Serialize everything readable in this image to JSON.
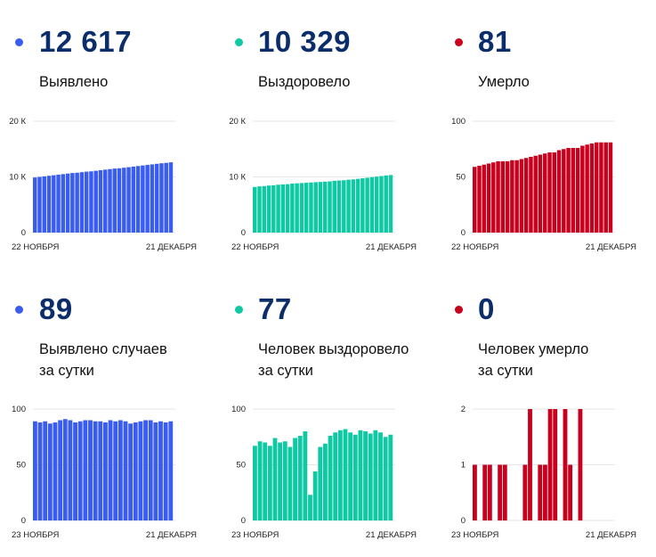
{
  "colors": {
    "blue": "#3a5df0",
    "teal": "#0ec9a4",
    "red": "#c8001e",
    "number": "#0b2e6b"
  },
  "panels": [
    {
      "value": "12 617",
      "label_lines": [
        "Выявлено"
      ],
      "color": "#3a5df0",
      "chart_data": {
        "type": "bar",
        "x_start_label": "22 НОЯБРЯ",
        "x_end_label": "21 ДЕКАБРЯ",
        "y_ticks": [
          "0",
          "10 К",
          "20 К"
        ],
        "ylim": [
          0,
          20000
        ],
        "values": [
          9900,
          10000,
          10100,
          10200,
          10300,
          10400,
          10500,
          10600,
          10700,
          10750,
          10850,
          10950,
          11000,
          11100,
          11200,
          11300,
          11400,
          11500,
          11550,
          11650,
          11750,
          11850,
          11950,
          12050,
          12150,
          12250,
          12350,
          12450,
          12520,
          12617
        ]
      }
    },
    {
      "value": "10 329",
      "label_lines": [
        "Выздоровело"
      ],
      "color": "#0ec9a4",
      "chart_data": {
        "type": "bar",
        "x_start_label": "22 НОЯБРЯ",
        "x_end_label": "21 ДЕКАБРЯ",
        "y_ticks": [
          "0",
          "10 К",
          "20 К"
        ],
        "ylim": [
          0,
          20000
        ],
        "values": [
          8200,
          8300,
          8350,
          8450,
          8500,
          8600,
          8650,
          8700,
          8800,
          8850,
          8900,
          8950,
          9000,
          9050,
          9100,
          9150,
          9200,
          9300,
          9350,
          9400,
          9500,
          9550,
          9650,
          9750,
          9850,
          9950,
          10050,
          10150,
          10250,
          10329
        ]
      }
    },
    {
      "value": "81",
      "label_lines": [
        "Умерло"
      ],
      "color": "#c8001e",
      "chart_data": {
        "type": "bar",
        "x_start_label": "22 НОЯБРЯ",
        "x_end_label": "21 ДЕКАБРЯ",
        "y_ticks": [
          "0",
          "50",
          "100"
        ],
        "ylim": [
          0,
          100
        ],
        "values": [
          59,
          60,
          61,
          62,
          63,
          64,
          64,
          64,
          65,
          65,
          66,
          67,
          68,
          69,
          70,
          71,
          72,
          72,
          74,
          75,
          76,
          76,
          76,
          78,
          79,
          80,
          81,
          81,
          81,
          81
        ]
      }
    },
    {
      "value": "89",
      "label_lines": [
        "Выявлено случаев",
        "за сутки"
      ],
      "color": "#3a5df0",
      "chart_data": {
        "type": "bar",
        "x_start_label": "23 НОЯБРЯ",
        "x_end_label": "21 ДЕКАБРЯ",
        "y_ticks": [
          "0",
          "50",
          "100"
        ],
        "ylim": [
          0,
          100
        ],
        "values": [
          89,
          88,
          89,
          87,
          88,
          90,
          91,
          90,
          88,
          89,
          90,
          90,
          89,
          89,
          88,
          90,
          89,
          90,
          89,
          87,
          88,
          89,
          90,
          90,
          88,
          89,
          88,
          89
        ]
      }
    },
    {
      "value": "77",
      "label_lines": [
        "Человек выздоровело",
        "за сутки"
      ],
      "color": "#0ec9a4",
      "chart_data": {
        "type": "bar",
        "x_start_label": "23 НОЯБРЯ",
        "x_end_label": "21 ДЕКАБРЯ",
        "y_ticks": [
          "0",
          "50",
          "100"
        ],
        "ylim": [
          0,
          100
        ],
        "values": [
          67,
          71,
          70,
          67,
          74,
          70,
          71,
          66,
          74,
          76,
          80,
          23,
          44,
          66,
          69,
          76,
          79,
          81,
          82,
          79,
          77,
          81,
          80,
          78,
          81,
          79,
          75,
          77
        ]
      }
    },
    {
      "value": "0",
      "label_lines": [
        "Человек умерло",
        "за сутки"
      ],
      "color": "#c8001e",
      "chart_data": {
        "type": "bar",
        "x_start_label": "23 НОЯБРЯ",
        "x_end_label": "21 ДЕКАБРЯ",
        "y_ticks": [
          "0",
          "1",
          "2"
        ],
        "ylim": [
          0,
          2
        ],
        "values": [
          1,
          0,
          1,
          1,
          0,
          1,
          1,
          0,
          0,
          0,
          1,
          2,
          0,
          1,
          1,
          2,
          2,
          0,
          2,
          1,
          0,
          2,
          0,
          0,
          0,
          0,
          0,
          0
        ]
      }
    }
  ]
}
